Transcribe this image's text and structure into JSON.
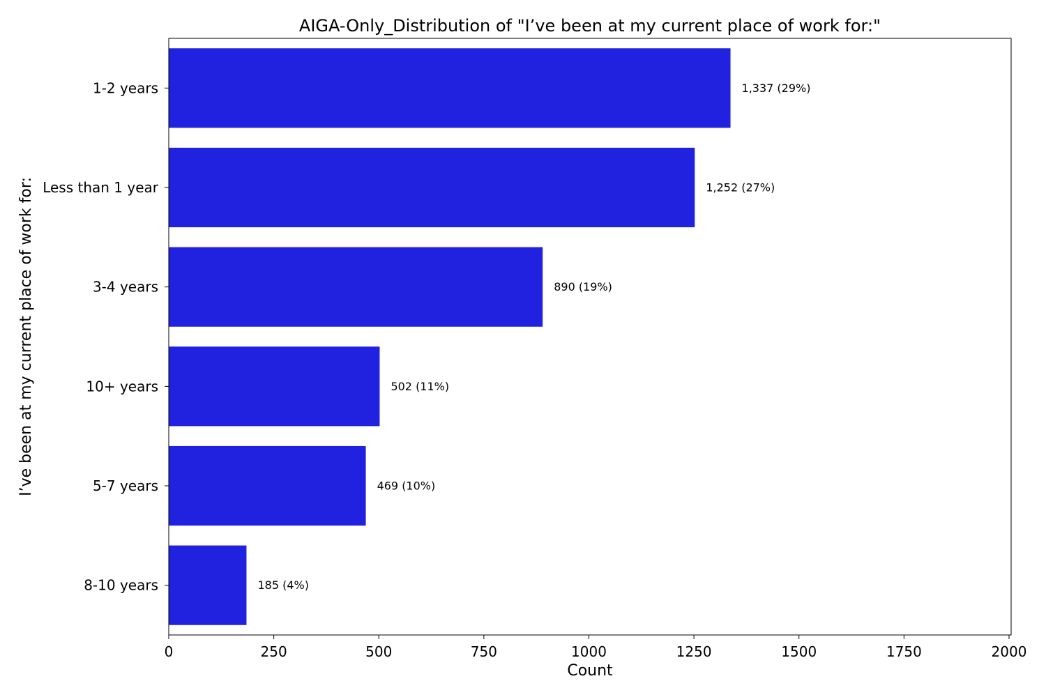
{
  "chart_data": {
    "type": "bar",
    "orientation": "horizontal",
    "title": "AIGA-Only_Distribution of \"I’ve been at my current place of work for:\"",
    "xlabel": "Count",
    "ylabel": "I’ve been at my current place of work for:",
    "categories": [
      "1-2 years",
      "Less than 1 year",
      "3-4 years",
      "10+ years",
      "5-7 years",
      "8-10 years"
    ],
    "values": [
      1337,
      1252,
      890,
      502,
      469,
      185
    ],
    "data_labels": [
      "1,337 (29%)",
      "1,252 (27%)",
      "890 (19%)",
      "502 (11%)",
      "469 (10%)",
      "185 (4%)"
    ],
    "xlim": [
      0,
      2005
    ],
    "xticks": [
      0,
      250,
      500,
      750,
      1000,
      1250,
      1500,
      1750,
      2000
    ],
    "grid": false,
    "bar_color": "#2121e0"
  }
}
